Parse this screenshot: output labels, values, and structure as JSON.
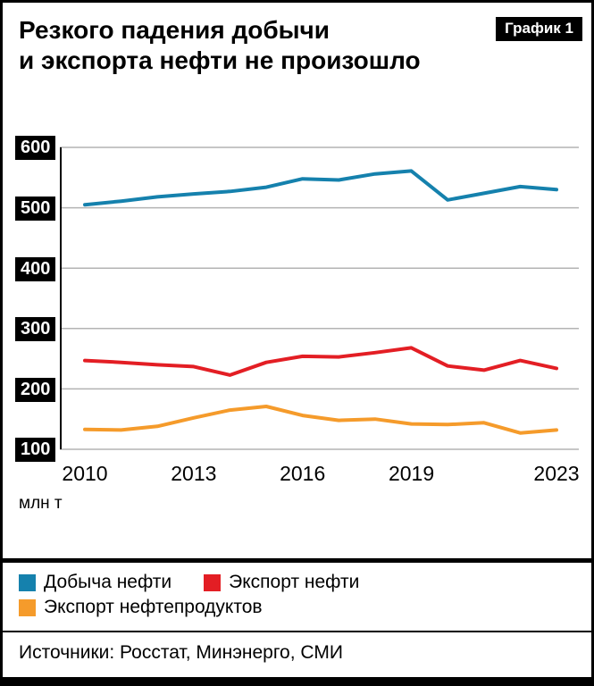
{
  "header": {
    "title_line1": "Резкого падения добычи",
    "title_line2": "и экспорта нефти не произошло",
    "badge": "График 1"
  },
  "chart_data": {
    "type": "line",
    "title": "Резкого падения добычи и экспорта нефти не произошло",
    "unit": "млн т",
    "x": [
      2010,
      2011,
      2012,
      2013,
      2014,
      2015,
      2016,
      2017,
      2018,
      2019,
      2020,
      2021,
      2022,
      2023
    ],
    "x_tick_labels": [
      "2010",
      "2013",
      "2016",
      "2019",
      "2023"
    ],
    "ylim": [
      100,
      600
    ],
    "yticks": [
      600,
      500,
      400,
      300,
      200,
      100
    ],
    "grid": true,
    "legend_position": "bottom",
    "series": [
      {
        "name": "Добыча нефти",
        "color": "#1581ad",
        "values": [
          505,
          511,
          518,
          523,
          527,
          534,
          548,
          546,
          556,
          561,
          513,
          524,
          535,
          530
        ]
      },
      {
        "name": "Экспорт нефти",
        "color": "#e31e24",
        "values": [
          247,
          244,
          240,
          237,
          223,
          244,
          254,
          253,
          260,
          268,
          238,
          231,
          247,
          234
        ]
      },
      {
        "name": "Экспорт нефтепродуктов",
        "color": "#f59b2b",
        "values": [
          133,
          132,
          138,
          152,
          165,
          171,
          156,
          148,
          150,
          142,
          141,
          144,
          127,
          132
        ]
      }
    ]
  },
  "footer": {
    "sources": "Источники: Росстат, Минэнерго, СМИ"
  },
  "colors": {
    "axis": "#000000",
    "grid": "#b3b3b3",
    "tick_chip_bg": "#000000",
    "tick_chip_text": "#ffffff"
  }
}
